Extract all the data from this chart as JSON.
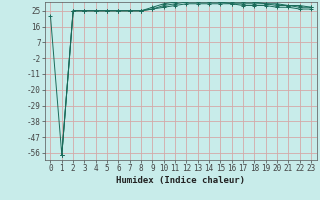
{
  "title": "",
  "xlabel": "Humidex (Indice chaleur)",
  "ylabel": "",
  "bg_color": "#c8ecea",
  "grid_color": "#d4a8a8",
  "line_color": "#1a6b5a",
  "xlim": [
    -0.5,
    23.5
  ],
  "ylim": [
    -60,
    30
  ],
  "xticks": [
    0,
    1,
    2,
    3,
    4,
    5,
    6,
    7,
    8,
    9,
    10,
    11,
    12,
    13,
    14,
    15,
    16,
    17,
    18,
    19,
    20,
    21,
    22,
    23
  ],
  "yticks": [
    -56,
    -47,
    -38,
    -29,
    -20,
    -11,
    -2,
    7,
    16,
    25
  ],
  "series": [
    {
      "x": [
        0,
        1,
        2,
        3,
        4,
        5,
        6,
        7,
        8,
        9,
        10,
        11,
        12,
        13,
        14,
        15,
        16,
        17,
        18,
        19,
        20,
        21,
        22,
        23
      ],
      "y": [
        22,
        -57,
        25,
        25,
        25,
        25,
        25,
        25,
        25,
        26,
        27,
        28,
        29,
        29,
        29,
        29,
        29,
        28,
        28,
        28,
        27,
        27,
        26,
        26
      ]
    },
    {
      "x": [
        1,
        2,
        3,
        4,
        5,
        6,
        7,
        8,
        9,
        10,
        11,
        12,
        13,
        14,
        15,
        16,
        17,
        18,
        19,
        20,
        21,
        22,
        23
      ],
      "y": [
        -57,
        25,
        25,
        25,
        25,
        25,
        25,
        25,
        26,
        28,
        29,
        30,
        30,
        30,
        30,
        29,
        29,
        29,
        29,
        28,
        28,
        27,
        27
      ]
    },
    {
      "x": [
        1,
        2,
        3,
        4,
        5,
        6,
        7,
        8,
        9,
        10,
        11,
        12,
        13,
        14,
        15,
        16,
        17,
        18,
        19,
        20,
        21,
        22,
        23
      ],
      "y": [
        -57,
        25,
        25,
        25,
        25,
        25,
        25,
        25,
        27,
        29,
        30,
        31,
        31,
        31,
        30,
        30,
        30,
        30,
        29,
        29,
        28,
        28,
        27
      ]
    }
  ],
  "tick_fontsize": 5.5,
  "xlabel_fontsize": 6.5
}
